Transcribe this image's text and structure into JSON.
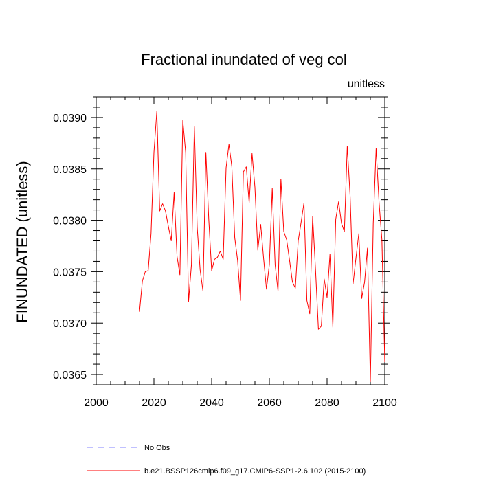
{
  "chart_data": {
    "type": "line",
    "title": "Fractional inundated of veg col",
    "units_label": "unitless",
    "xlabel": "",
    "ylabel": "FINUNDATED  (unitless)",
    "xlim": [
      2000,
      2100
    ],
    "ylim": [
      0.0364,
      0.0392
    ],
    "x_ticks": [
      2000,
      2020,
      2040,
      2060,
      2080,
      2100
    ],
    "x_tick_labels": [
      "2000",
      "2020",
      "2040",
      "2060",
      "2080",
      "2100"
    ],
    "y_ticks": [
      0.0365,
      0.037,
      0.0375,
      0.038,
      0.0385,
      0.039
    ],
    "y_tick_labels": [
      "0.0365",
      "0.0370",
      "0.0375",
      "0.0380",
      "0.0385",
      "0.0390"
    ],
    "grid": false,
    "legend_position": "bottom-left",
    "legend": [
      {
        "label": "No Obs",
        "color": "#8080ff",
        "style": "dashed"
      },
      {
        "label": "b.e21.BSSP126cmip6.f09_g17.CMIP6-SSP1-2.6.102 (2015-2100)",
        "color": "#ff0000",
        "style": "solid"
      }
    ],
    "series": [
      {
        "color": "#ff0000",
        "x": [
          2015,
          2016,
          2017,
          2018,
          2019,
          2020,
          2021,
          2022,
          2023,
          2024,
          2025,
          2026,
          2027,
          2028,
          2029,
          2030,
          2031,
          2032,
          2033,
          2034,
          2035,
          2036,
          2037,
          2038,
          2039,
          2040,
          2041,
          2042,
          2043,
          2044,
          2045,
          2046,
          2047,
          2048,
          2049,
          2050,
          2051,
          2052,
          2053,
          2054,
          2055,
          2056,
          2057,
          2058,
          2059,
          2060,
          2061,
          2062,
          2063,
          2064,
          2065,
          2066,
          2067,
          2068,
          2069,
          2070,
          2071,
          2072,
          2073,
          2074,
          2075,
          2076,
          2077,
          2078,
          2079,
          2080,
          2081,
          2082,
          2083,
          2084,
          2085,
          2086,
          2087,
          2088,
          2089,
          2090,
          2091,
          2092,
          2093,
          2094,
          2095,
          2096,
          2097,
          2098,
          2099,
          2100
        ],
        "y": [
          0.03711,
          0.03741,
          0.0375,
          0.03751,
          0.03787,
          0.03866,
          0.03906,
          0.03809,
          0.03816,
          0.03809,
          0.03794,
          0.0378,
          0.03827,
          0.03765,
          0.03747,
          0.03897,
          0.03866,
          0.03721,
          0.03757,
          0.03891,
          0.03793,
          0.03752,
          0.03731,
          0.03866,
          0.03801,
          0.03751,
          0.03762,
          0.03764,
          0.0377,
          0.03762,
          0.03851,
          0.03874,
          0.03852,
          0.03783,
          0.03761,
          0.03722,
          0.03847,
          0.03852,
          0.03817,
          0.03865,
          0.03832,
          0.03771,
          0.03796,
          0.03763,
          0.03733,
          0.03757,
          0.03831,
          0.03757,
          0.03731,
          0.0384,
          0.03789,
          0.03781,
          0.03761,
          0.0374,
          0.03734,
          0.0378,
          0.03798,
          0.03817,
          0.03722,
          0.03709,
          0.03804,
          0.03752,
          0.03694,
          0.03697,
          0.03743,
          0.03725,
          0.03767,
          0.03696,
          0.03801,
          0.03818,
          0.03797,
          0.03789,
          0.03872,
          0.03823,
          0.03738,
          0.03763,
          0.03787,
          0.03724,
          0.0374,
          0.03773,
          0.03643,
          0.03797,
          0.0387,
          0.03818,
          0.03781,
          0.03662
        ]
      }
    ]
  }
}
